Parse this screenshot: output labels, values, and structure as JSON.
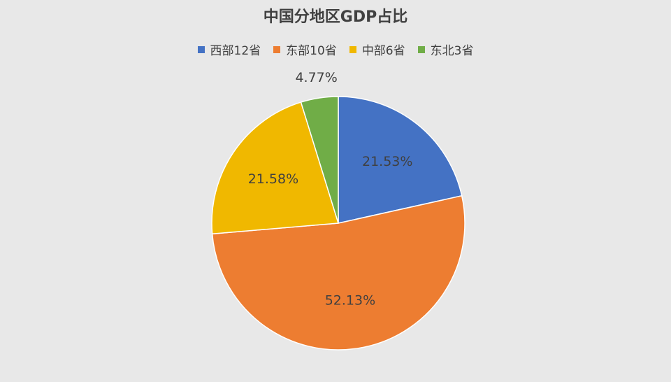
{
  "chart_data": {
    "type": "pie",
    "title": "中国分地区GDP占比",
    "categories": [
      "西部12省",
      "东部10省",
      "中部6省",
      "东北3省"
    ],
    "values": [
      21.53,
      52.13,
      21.58,
      4.77
    ],
    "data_labels": [
      "21.53%",
      "52.13%",
      "21.58%",
      "4.77%"
    ],
    "colors": [
      "#4472c4",
      "#ed7d31",
      "#f0b800",
      "#70ad47"
    ],
    "start_angle_deg": 0,
    "direction": "clockwise",
    "legend_position": "top"
  }
}
